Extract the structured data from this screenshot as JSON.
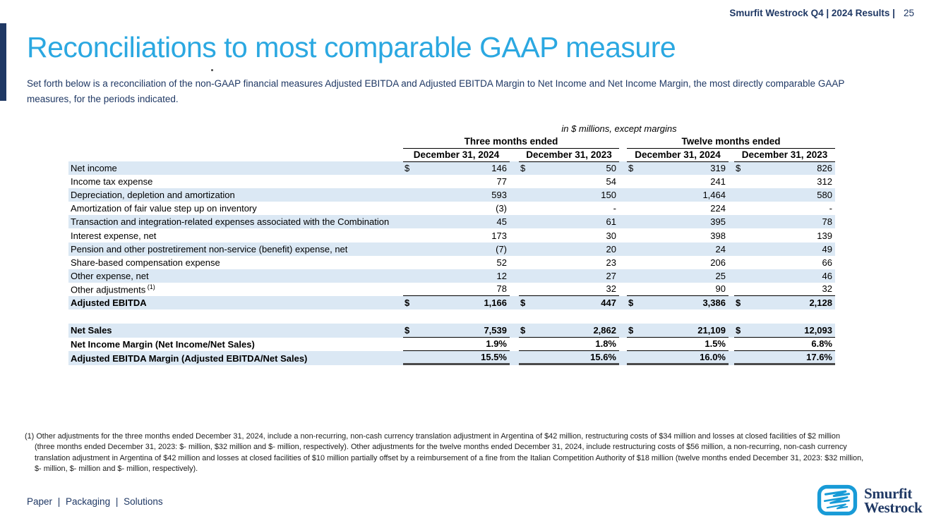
{
  "header": {
    "deck_title": "Smurfit Westrock Q4 | 2024 Results |",
    "page_number": "25"
  },
  "title": "Reconciliations to most comparable GAAP measure",
  "intro_lines": [
    "Set forth below is a reconciliation of the non-GAAP financial measures Adjusted EBITDA and Adjusted EBITDA Margin to Net Income and Net Income Margin, the most directly comparable GAAP",
    "measures, for the periods indicated."
  ],
  "table": {
    "units_note": "in $ millions, except margins",
    "period_groups": [
      "Three months ended",
      "Twelve months ended"
    ],
    "column_headers": [
      "December 31, 2024",
      "December 31, 2023",
      "December 31, 2024",
      "December 31, 2023"
    ],
    "rows": [
      {
        "label": "Net income",
        "dollar": true,
        "shaded": true,
        "values": [
          "146",
          "50",
          "319",
          "826"
        ]
      },
      {
        "label": "Income tax expense",
        "values": [
          "77",
          "54",
          "241",
          "312"
        ]
      },
      {
        "label": "Depreciation, depletion and amortization",
        "shaded": true,
        "values": [
          "593",
          "150",
          "1,464",
          "580"
        ]
      },
      {
        "label": "Amortization of fair value step up on inventory",
        "values": [
          "(3)",
          "-",
          "224",
          "-"
        ]
      },
      {
        "label": "Transaction and integration-related expenses associated with the Combination",
        "shaded": true,
        "values": [
          "45",
          "61",
          "395",
          "78"
        ]
      },
      {
        "label": "Interest expense, net",
        "values": [
          "173",
          "30",
          "398",
          "139"
        ]
      },
      {
        "label": "Pension and other postretirement non-service (benefit) expense, net",
        "shaded": true,
        "values": [
          "(7)",
          "20",
          "24",
          "49"
        ]
      },
      {
        "label": "Share-based compensation expense",
        "values": [
          "52",
          "23",
          "206",
          "66"
        ]
      },
      {
        "label": "Other expense, net",
        "shaded": true,
        "values": [
          "12",
          "27",
          "25",
          "46"
        ]
      },
      {
        "label": "Other adjustments",
        "sup": "(1)",
        "rule": "thin",
        "values": [
          "78",
          "32",
          "90",
          "32"
        ]
      },
      {
        "label": "Adjusted EBITDA",
        "dollar": true,
        "bold": true,
        "shaded": true,
        "values": [
          "1,166",
          "447",
          "3,386",
          "2,128"
        ]
      }
    ],
    "summary_rows": [
      {
        "label": "Net Sales",
        "dollar": true,
        "bold": true,
        "shaded": true,
        "rule": "thin",
        "values": [
          "7,539",
          "2,862",
          "21,109",
          "12,093"
        ]
      },
      {
        "label": "Net Income Margin (Net Income/Net Sales)",
        "bold": true,
        "rule": "thin",
        "values": [
          "1.9%",
          "1.8%",
          "1.5%",
          "6.8%"
        ]
      },
      {
        "label": "Adjusted EBITDA Margin (Adjusted EBITDA/Net Sales)",
        "bold": true,
        "shaded": true,
        "rule": "thick",
        "values": [
          "15.5%",
          "15.6%",
          "16.0%",
          "17.6%"
        ]
      }
    ]
  },
  "footnote_lines": [
    "(1) Other adjustments for the three months ended December 31, 2024, include a non-recurring, non-cash currency translation adjustment in Argentina of $42 million, restructuring costs of $34 million and losses at closed facilities of $2 million",
    "(three months ended December 31, 2023: $- million, $32 million and $- million, respectively). Other adjustments for the twelve months ended December 31, 2024, include restructuring costs of $56 million, a non-recurring, non-cash currency",
    "translation adjustment in Argentina of $42 million and losses at closed facilities of $10 million partially offset by a reimbursement of a fine from the Italian Competition Authority of $18 million (twelve months ended December 31, 2023: $32 million,",
    "$- million, $- million and $- million, respectively)."
  ],
  "footer": {
    "tagline": "Paper | Packaging | Solutions",
    "logo_line1": "Smurfit",
    "logo_line2": "Westrock"
  },
  "colors": {
    "accent_blue": "#2BA8E1",
    "navy": "#1F3864",
    "row_shade": "#DBE8F4",
    "logo_blue": "#189BD7"
  }
}
